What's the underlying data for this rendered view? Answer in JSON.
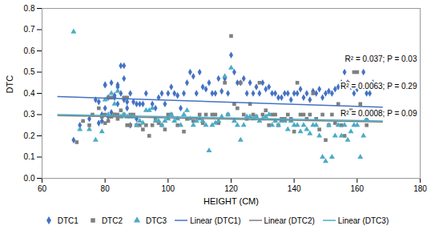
{
  "chart_data": {
    "type": "scatter",
    "xlabel": "HEIGHT (CM)",
    "ylabel": "DTC",
    "xlim": [
      60,
      180
    ],
    "ylim": [
      0,
      0.8
    ],
    "xticks": [
      60,
      80,
      100,
      120,
      140,
      160,
      180
    ],
    "yticks": [
      {
        "value": 0,
        "label": "0.0"
      },
      0.1,
      0.2,
      0.3,
      0.4,
      0.5,
      0.6,
      0.7,
      0.8
    ],
    "grid": false,
    "legend": "bottom",
    "annotations": [
      "R² = 0.037; P = 0.03",
      "R² = 0.0063; P = 0.29",
      "R² = 0.0008; P = 0.09"
    ],
    "series": [
      {
        "name": "DTC1",
        "type": "scatter",
        "color": "#4472C4",
        "marker": "diamond",
        "x": [
          70,
          72,
          75,
          77,
          78,
          78,
          79,
          79,
          80,
          80,
          80,
          81,
          81,
          82,
          82,
          83,
          83,
          84,
          84,
          84,
          85,
          85,
          86,
          86,
          86,
          87,
          87,
          88,
          88,
          89,
          90,
          90,
          91,
          92,
          93,
          95,
          96,
          97,
          98,
          99,
          100,
          101,
          102,
          103,
          104,
          105,
          106,
          107,
          108,
          109,
          110,
          111,
          112,
          113,
          114,
          115,
          116,
          117,
          118,
          119,
          120,
          121,
          122,
          123,
          124,
          125,
          126,
          127,
          128,
          129,
          130,
          131,
          132,
          133,
          134,
          135,
          136,
          137,
          138,
          139,
          140,
          141,
          142,
          143,
          144,
          145,
          146,
          147,
          148,
          149,
          150,
          151,
          152,
          153,
          154,
          155,
          156,
          157,
          158,
          159,
          160,
          161,
          162,
          163,
          164,
          165
        ],
        "values": [
          0.18,
          0.25,
          0.28,
          0.37,
          0.36,
          0.26,
          0.3,
          0.27,
          0.44,
          0.44,
          0.33,
          0.38,
          0.29,
          0.45,
          0.31,
          0.38,
          0.39,
          0.43,
          0.44,
          0.35,
          0.53,
          0.4,
          0.53,
          0.47,
          0.37,
          0.36,
          0.33,
          0.4,
          0.25,
          0.36,
          0.35,
          0.28,
          0.35,
          0.35,
          0.4,
          0.35,
          0.33,
          0.38,
          0.4,
          0.35,
          0.4,
          0.43,
          0.4,
          0.39,
          0.33,
          0.4,
          0.45,
          0.5,
          0.48,
          0.4,
          0.5,
          0.43,
          0.42,
          0.45,
          0.4,
          0.4,
          0.47,
          0.41,
          0.47,
          0.4,
          0.58,
          0.5,
          0.45,
          0.45,
          0.47,
          0.4,
          0.45,
          0.4,
          0.43,
          0.4,
          0.45,
          0.42,
          0.43,
          0.4,
          0.4,
          0.38,
          0.38,
          0.4,
          0.4,
          0.37,
          0.4,
          0.4,
          0.42,
          0.38,
          0.4,
          0.37,
          0.41,
          0.4,
          0.42,
          0.38,
          0.4,
          0.41,
          0.4,
          0.42,
          0.43,
          0.45,
          0.5,
          0.45,
          0.43,
          0.4,
          0.42,
          0.44,
          0.5,
          0.4,
          0.4,
          0.45
        ]
      },
      {
        "name": "DTC2",
        "type": "scatter",
        "color": "#7F7F7F",
        "marker": "square",
        "x": [
          71,
          73,
          75,
          76,
          78,
          79,
          80,
          80,
          81,
          81,
          82,
          82,
          83,
          83,
          84,
          84,
          85,
          86,
          86,
          87,
          87,
          88,
          88,
          89,
          90,
          91,
          92,
          93,
          94,
          95,
          96,
          97,
          98,
          99,
          100,
          101,
          103,
          105,
          106,
          108,
          110,
          111,
          112,
          114,
          115,
          116,
          118,
          119,
          120,
          121,
          122,
          123,
          124,
          125,
          126,
          127,
          128,
          129,
          130,
          131,
          132,
          133,
          134,
          135,
          136,
          137,
          138,
          139,
          140,
          141,
          142,
          143,
          144,
          145,
          146,
          147,
          148,
          149,
          150,
          151,
          152,
          153,
          154,
          155,
          156,
          157,
          158,
          159,
          160,
          161,
          162,
          163
        ],
        "values": [
          0.17,
          0.27,
          0.25,
          0.3,
          0.33,
          0.29,
          0.3,
          0.26,
          0.38,
          0.27,
          0.38,
          0.29,
          0.3,
          0.3,
          0.28,
          0.3,
          0.32,
          0.38,
          0.3,
          0.38,
          0.25,
          0.25,
          0.3,
          0.3,
          0.25,
          0.25,
          0.23,
          0.25,
          0.2,
          0.25,
          0.28,
          0.26,
          0.25,
          0.23,
          0.3,
          0.3,
          0.25,
          0.22,
          0.28,
          0.27,
          0.3,
          0.26,
          0.3,
          0.3,
          0.3,
          0.26,
          0.45,
          0.3,
          0.67,
          0.35,
          0.33,
          0.45,
          0.3,
          0.28,
          0.35,
          0.3,
          0.29,
          0.45,
          0.3,
          0.32,
          0.25,
          0.3,
          0.3,
          0.25,
          0.28,
          0.28,
          0.3,
          0.28,
          0.22,
          0.45,
          0.3,
          0.3,
          0.28,
          0.3,
          0.4,
          0.28,
          0.23,
          0.3,
          0.18,
          0.25,
          0.3,
          0.26,
          0.35,
          0.25,
          0.2,
          0.45,
          0.32,
          0.5,
          0.5,
          0.35,
          0.3,
          0.25
        ]
      },
      {
        "name": "DTC3",
        "type": "scatter",
        "color": "#4BACC6",
        "marker": "triangle",
        "x": [
          70,
          72,
          75,
          77,
          79,
          80,
          81,
          82,
          83,
          84,
          85,
          86,
          87,
          88,
          89,
          90,
          91,
          92,
          93,
          94,
          95,
          96,
          97,
          98,
          99,
          100,
          101,
          102,
          103,
          104,
          105,
          106,
          107,
          108,
          109,
          110,
          111,
          112,
          113,
          114,
          115,
          116,
          117,
          118,
          119,
          120,
          121,
          122,
          123,
          124,
          125,
          126,
          127,
          128,
          129,
          130,
          131,
          132,
          133,
          134,
          135,
          136,
          137,
          138,
          139,
          140,
          141,
          142,
          143,
          144,
          145,
          146,
          147,
          148,
          149,
          150,
          151,
          152,
          153,
          154,
          155,
          156,
          157,
          158,
          159,
          160,
          161,
          162,
          163
        ],
        "values": [
          0.69,
          0.23,
          0.23,
          0.18,
          0.22,
          0.37,
          0.3,
          0.4,
          0.35,
          0.41,
          0.29,
          0.3,
          0.29,
          0.29,
          0.29,
          0.25,
          0.27,
          0.26,
          0.32,
          0.32,
          0.33,
          0.27,
          0.27,
          0.25,
          0.27,
          0.28,
          0.3,
          0.27,
          0.28,
          0.25,
          0.3,
          0.32,
          0.28,
          0.25,
          0.27,
          0.28,
          0.27,
          0.25,
          0.13,
          0.25,
          0.26,
          0.27,
          0.29,
          0.48,
          0.3,
          0.52,
          0.27,
          0.25,
          0.18,
          0.25,
          0.29,
          0.29,
          0.28,
          0.29,
          0.27,
          0.28,
          0.29,
          0.3,
          0.25,
          0.27,
          0.25,
          0.27,
          0.27,
          0.23,
          0.27,
          0.25,
          0.25,
          0.22,
          0.25,
          0.23,
          0.21,
          0.25,
          0.25,
          0.2,
          0.1,
          0.08,
          0.25,
          0.1,
          0.2,
          0.25,
          0.2,
          0.25,
          0.18,
          0.22,
          0.25,
          0.25,
          0.1,
          0.2,
          0.28
        ]
      },
      {
        "name": "Linear (DTC1)",
        "type": "line",
        "color": "#4472C4",
        "line_style": "solid",
        "x": [
          65,
          168
        ],
        "values": [
          0.385,
          0.335
        ]
      },
      {
        "name": "Linear (DTC2)",
        "type": "line",
        "color": "#7F7F7F",
        "line_style": "solid",
        "x": [
          65,
          168
        ],
        "values": [
          0.295,
          0.265
        ]
      },
      {
        "name": "Linear (DTC3)",
        "type": "line",
        "color": "#4BACC6",
        "line_style": "solid",
        "x": [
          65,
          168
        ],
        "values": [
          0.3,
          0.27
        ]
      }
    ]
  }
}
